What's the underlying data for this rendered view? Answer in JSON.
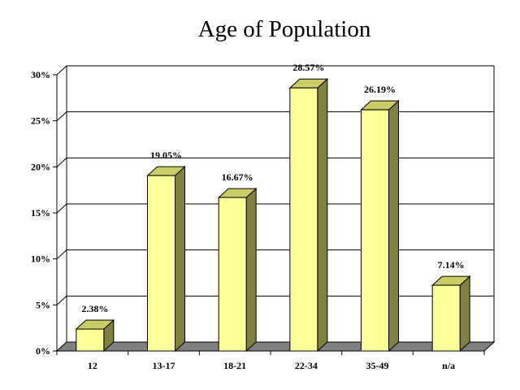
{
  "chart_data": {
    "type": "bar",
    "title": "Age of Population",
    "categories": [
      "12",
      "13-17",
      "18-21",
      "22-34",
      "35-49",
      "n/a"
    ],
    "values": [
      2.38,
      19.05,
      16.67,
      28.57,
      26.19,
      7.14
    ],
    "data_labels": [
      "2.38%",
      "19.05%",
      "16.67%",
      "28.57%",
      "26.19%",
      "7.14%"
    ],
    "ylim": [
      0,
      30
    ],
    "yticks": [
      0,
      5,
      10,
      15,
      20,
      25,
      30
    ],
    "ytick_labels": [
      "0%",
      "5%",
      "10%",
      "15%",
      "20%",
      "25%",
      "30%"
    ],
    "grid": true,
    "style": "3d",
    "colors": {
      "bar_front": "#ffff99",
      "bar_side": "#808040",
      "bar_top": "#cccc66",
      "floor": "#808080",
      "grid": "#000000"
    }
  }
}
